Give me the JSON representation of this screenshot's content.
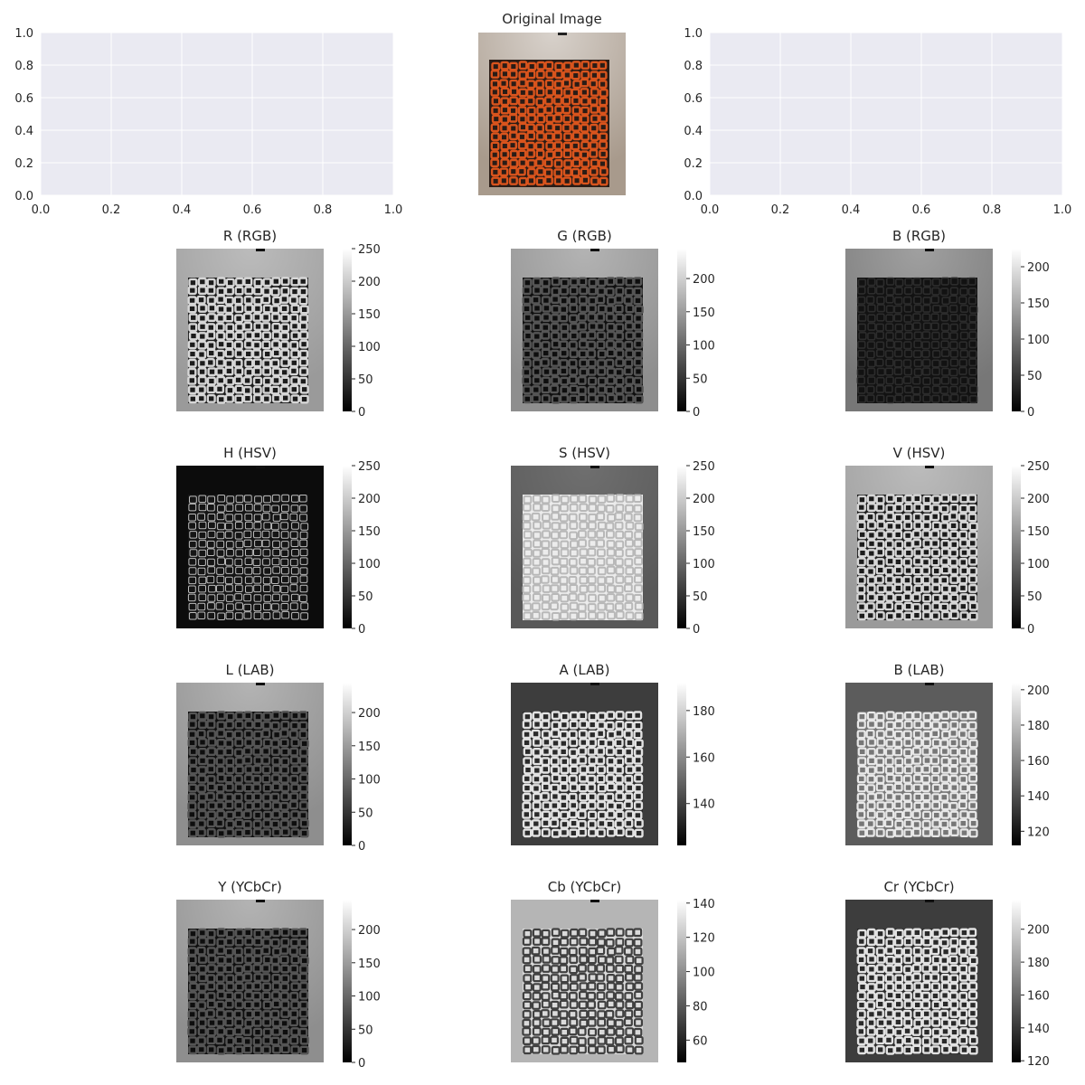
{
  "colors": {
    "axes_bg": "#eaeaf2",
    "grid": "#ffffff",
    "text": "#262626",
    "painting": "#d9541d",
    "wall": "#a89a8c"
  },
  "empty_ticks": [
    "0.0",
    "0.2",
    "0.4",
    "0.6",
    "0.8",
    "1.0"
  ],
  "original_title": "Original Image",
  "chart_data": [
    {
      "type": "scatter",
      "name": "empty-axes-left",
      "xlim": [
        0,
        1
      ],
      "ylim": [
        0,
        1
      ],
      "grid": true,
      "series": []
    },
    {
      "type": "scatter",
      "name": "empty-axes-right",
      "xlim": [
        0,
        1
      ],
      "ylim": [
        0,
        1
      ],
      "grid": true,
      "series": []
    },
    {
      "type": "heatmap",
      "title": "R (RGB)",
      "style": "bright",
      "colorbar_ticks": [
        "250",
        "200",
        "150",
        "100",
        "50",
        "0"
      ],
      "colorbar_range": [
        0,
        250
      ]
    },
    {
      "type": "heatmap",
      "title": "G (RGB)",
      "style": "dark-grid",
      "colorbar_ticks": [
        "200",
        "150",
        "100",
        "50",
        "0"
      ],
      "colorbar_range": [
        0,
        245
      ]
    },
    {
      "type": "heatmap",
      "title": "B (RGB)",
      "style": "very-dark",
      "colorbar_ticks": [
        "200",
        "150",
        "100",
        "50",
        "0"
      ],
      "colorbar_range": [
        0,
        225
      ]
    },
    {
      "type": "heatmap",
      "title": "H (HSV)",
      "style": "hue",
      "colorbar_ticks": [
        "250",
        "200",
        "150",
        "100",
        "50",
        "0"
      ],
      "colorbar_range": [
        0,
        250
      ]
    },
    {
      "type": "heatmap",
      "title": "S (HSV)",
      "style": "saturation",
      "colorbar_ticks": [
        "250",
        "200",
        "150",
        "100",
        "50",
        "0"
      ],
      "colorbar_range": [
        0,
        250
      ]
    },
    {
      "type": "heatmap",
      "title": "V (HSV)",
      "style": "bright",
      "colorbar_ticks": [
        "250",
        "200",
        "150",
        "100",
        "50",
        "0"
      ],
      "colorbar_range": [
        0,
        250
      ]
    },
    {
      "type": "heatmap",
      "title": "L (LAB)",
      "style": "dark-grid",
      "colorbar_ticks": [
        "200",
        "150",
        "100",
        "50",
        "0"
      ],
      "colorbar_range": [
        0,
        245
      ]
    },
    {
      "type": "heatmap",
      "title": "A (LAB)",
      "style": "light-grid",
      "colorbar_ticks": [
        "180",
        "160",
        "140"
      ],
      "colorbar_range": [
        122,
        192
      ]
    },
    {
      "type": "heatmap",
      "title": "B (LAB)",
      "style": "mid-grid",
      "colorbar_ticks": [
        "200",
        "180",
        "160",
        "140",
        "120"
      ],
      "colorbar_range": [
        112,
        204
      ]
    },
    {
      "type": "heatmap",
      "title": "Y (YCbCr)",
      "style": "dark-grid",
      "colorbar_ticks": [
        "200",
        "150",
        "100",
        "50",
        "0"
      ],
      "colorbar_range": [
        0,
        245
      ]
    },
    {
      "type": "heatmap",
      "title": "Cb (YCbCr)",
      "style": "inverse",
      "colorbar_ticks": [
        "140",
        "120",
        "100",
        "80",
        "60"
      ],
      "colorbar_range": [
        47,
        142
      ]
    },
    {
      "type": "heatmap",
      "title": "Cr (YCbCr)",
      "style": "light-grid",
      "colorbar_ticks": [
        "200",
        "180",
        "160",
        "140",
        "120"
      ],
      "colorbar_range": [
        119,
        218
      ]
    }
  ]
}
